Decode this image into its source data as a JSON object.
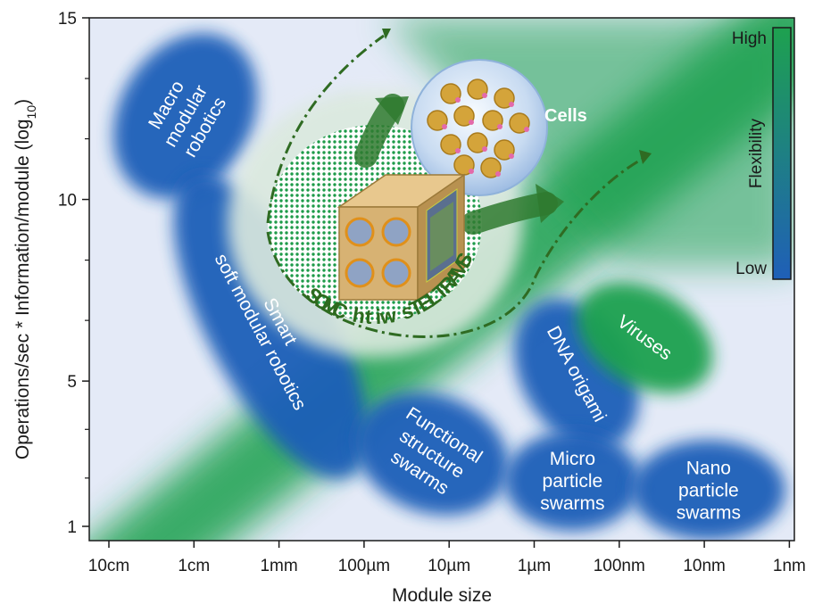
{
  "chart_data": {
    "type": "scatter",
    "xlabel": "Module size",
    "ylabel": "Operations/sec * Information/module (log",
    "ylabel_sub": "10",
    "ylabel_close": ")",
    "x_tick_labels": [
      "10cm",
      "1cm",
      "1mm",
      "100µm",
      "10µm",
      "1µm",
      "100nm",
      "10nm",
      "1nm"
    ],
    "y_ticks": [
      {
        "label": "15",
        "value": 15
      },
      {
        "label": "10",
        "value": 10
      },
      {
        "label": "5",
        "value": 5
      },
      {
        "label": "1",
        "value": 1
      }
    ],
    "y_minor_ticks": [
      13.33,
      11.67,
      8.33,
      6.67,
      3.67,
      2.33
    ],
    "xlim": [
      0,
      8
    ],
    "ylim": [
      1,
      15
    ],
    "regions": [
      {
        "id": "macro-modular",
        "lines": [
          "Macro",
          "modular",
          "robotics"
        ],
        "x": 0.9,
        "y": 12.3,
        "color": "#1f5fb8"
      },
      {
        "id": "smart-soft",
        "lines": [
          "Smart",
          "soft modular robotics"
        ],
        "x": 1.9,
        "y": 6.5,
        "color": "#1f5fb8"
      },
      {
        "id": "functional-structure",
        "lines": [
          "Functional",
          "structure",
          "swarms"
        ],
        "x": 3.8,
        "y": 3.0,
        "color": "#1f5fb8"
      },
      {
        "id": "dna-origami",
        "lines": [
          "DNA origami"
        ],
        "x": 5.5,
        "y": 5.2,
        "color": "#1f5fb8"
      },
      {
        "id": "viruses",
        "lines": [
          "Viruses"
        ],
        "x": 6.3,
        "y": 6.2,
        "color": "#1ea14f"
      },
      {
        "id": "micro-particle",
        "lines": [
          "Micro",
          "particle",
          "swarms"
        ],
        "x": 5.45,
        "y": 2.25,
        "color": "#1f5fb8"
      },
      {
        "id": "nano-particle",
        "lines": [
          "Nano",
          "particle",
          "swarms"
        ],
        "x": 7.05,
        "y": 2.0,
        "color": "#1f5fb8"
      }
    ],
    "smartlets_label": "SMARTLETs with CMOS",
    "cells_label": "Cells",
    "legend": {
      "title": "Flexibility",
      "high": "High",
      "low": "Low",
      "high_color": "#1ea14f",
      "low_color": "#1f5fb8"
    },
    "colors": {
      "green": "#1ea14f",
      "blue": "#1f5fb8",
      "background": "#e4eaf7",
      "arrow": "#2f7a2f"
    }
  }
}
